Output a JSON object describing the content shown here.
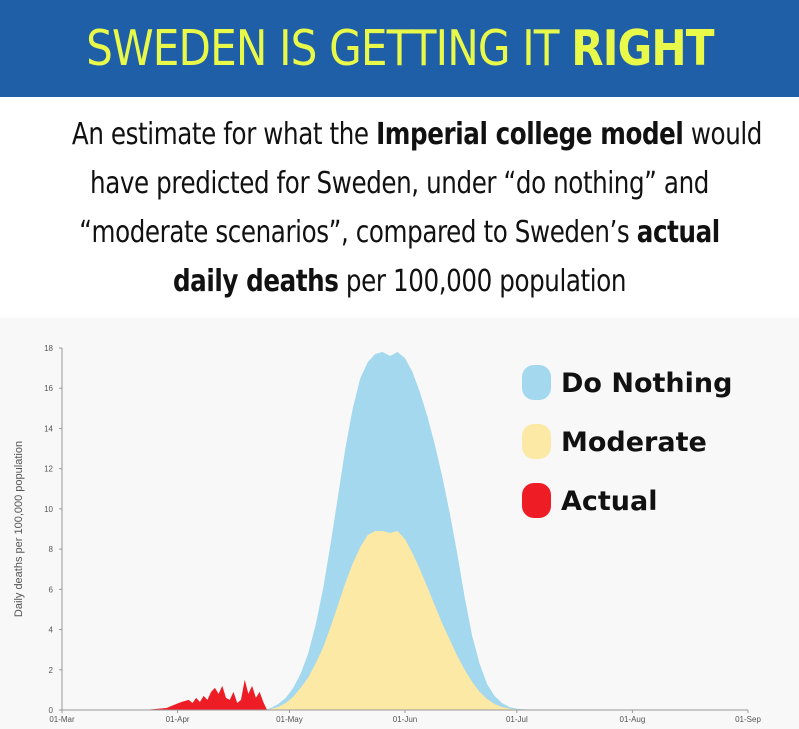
{
  "header": {
    "title_regular": "SWEDEN IS GETTING IT ",
    "title_bold": "RIGHT",
    "bg_color": "#1f5fa8",
    "text_color": "#e8f94a"
  },
  "subtitle": {
    "line1_a": "An estimate for what the ",
    "line1_b": "Imperial college model",
    "line1_c": " would",
    "line2": "have predicted for Sweden, under “do nothing” and",
    "line3_a": "“moderate scenarios”, compared to Sweden’s ",
    "line3_b": "actual",
    "line4_a": "daily deaths",
    "line4_b": " per 100,000 population"
  },
  "chart_data": {
    "type": "area",
    "ylabel": "Daily deaths per 100,000 population",
    "xlabel": "",
    "ylim": [
      0,
      18
    ],
    "yticks": [
      "0",
      "2",
      "4",
      "6",
      "8",
      "10",
      "12",
      "14",
      "16",
      "18"
    ],
    "xlim": [
      0,
      184
    ],
    "xticks": [
      {
        "label": "01-Mar",
        "day": 0
      },
      {
        "label": "01-Apr",
        "day": 31
      },
      {
        "label": "01-May",
        "day": 61
      },
      {
        "label": "01-Jun",
        "day": 92
      },
      {
        "label": "01-Jul",
        "day": 122
      },
      {
        "label": "01-Aug",
        "day": 153
      },
      {
        "label": "01-Sep",
        "day": 184
      }
    ],
    "series": [
      {
        "name": "Do Nothing",
        "color": "#a3d8ee",
        "points": [
          [
            54,
            0
          ],
          [
            56,
            0.1
          ],
          [
            58,
            0.3
          ],
          [
            60,
            0.6
          ],
          [
            62,
            1.1
          ],
          [
            64,
            1.8
          ],
          [
            66,
            2.8
          ],
          [
            68,
            4.2
          ],
          [
            70,
            6.0
          ],
          [
            72,
            8.2
          ],
          [
            74,
            10.6
          ],
          [
            76,
            13.0
          ],
          [
            78,
            15.0
          ],
          [
            80,
            16.5
          ],
          [
            82,
            17.3
          ],
          [
            84,
            17.7
          ],
          [
            86,
            17.8
          ],
          [
            88,
            17.6
          ],
          [
            90,
            17.8
          ],
          [
            92,
            17.5
          ],
          [
            94,
            16.8
          ],
          [
            96,
            15.8
          ],
          [
            98,
            14.6
          ],
          [
            100,
            13.2
          ],
          [
            102,
            11.6
          ],
          [
            104,
            9.8
          ],
          [
            106,
            7.8
          ],
          [
            108,
            5.6
          ],
          [
            110,
            3.7
          ],
          [
            112,
            2.3
          ],
          [
            114,
            1.3
          ],
          [
            116,
            0.7
          ],
          [
            118,
            0.35
          ],
          [
            120,
            0.15
          ],
          [
            122,
            0.06
          ],
          [
            126,
            0
          ]
        ]
      },
      {
        "name": "Moderate",
        "color": "#fde9a6",
        "points": [
          [
            54,
            0
          ],
          [
            56,
            0.05
          ],
          [
            58,
            0.15
          ],
          [
            60,
            0.35
          ],
          [
            62,
            0.65
          ],
          [
            64,
            1.1
          ],
          [
            66,
            1.6
          ],
          [
            68,
            2.3
          ],
          [
            70,
            3.1
          ],
          [
            72,
            4.1
          ],
          [
            74,
            5.2
          ],
          [
            76,
            6.3
          ],
          [
            78,
            7.3
          ],
          [
            80,
            8.1
          ],
          [
            82,
            8.7
          ],
          [
            84,
            8.9
          ],
          [
            86,
            8.9
          ],
          [
            88,
            8.8
          ],
          [
            90,
            8.9
          ],
          [
            92,
            8.5
          ],
          [
            94,
            7.8
          ],
          [
            96,
            7.0
          ],
          [
            98,
            6.1
          ],
          [
            100,
            5.2
          ],
          [
            102,
            4.3
          ],
          [
            104,
            3.5
          ],
          [
            106,
            2.7
          ],
          [
            108,
            2.0
          ],
          [
            110,
            1.4
          ],
          [
            112,
            0.9
          ],
          [
            114,
            0.55
          ],
          [
            116,
            0.3
          ],
          [
            118,
            0.15
          ],
          [
            120,
            0.07
          ],
          [
            122,
            0.03
          ],
          [
            124,
            0
          ]
        ]
      },
      {
        "name": "Actual",
        "color": "#ee1c25",
        "points": [
          [
            22,
            0
          ],
          [
            25,
            0.05
          ],
          [
            28,
            0.1
          ],
          [
            30,
            0.25
          ],
          [
            32,
            0.4
          ],
          [
            34,
            0.5
          ],
          [
            35,
            0.35
          ],
          [
            36,
            0.6
          ],
          [
            37,
            0.4
          ],
          [
            38,
            0.7
          ],
          [
            39,
            0.5
          ],
          [
            40,
            0.9
          ],
          [
            41,
            1.1
          ],
          [
            42,
            0.8
          ],
          [
            43,
            1.2
          ],
          [
            44,
            0.6
          ],
          [
            45,
            0.5
          ],
          [
            46,
            0.9
          ],
          [
            47,
            0.35
          ],
          [
            48,
            0.5
          ],
          [
            49,
            1.5
          ],
          [
            50,
            0.8
          ],
          [
            51,
            1.2
          ],
          [
            52,
            0.6
          ],
          [
            53,
            0.9
          ],
          [
            54,
            0.4
          ],
          [
            55,
            0
          ]
        ]
      }
    ],
    "legend": {
      "position": "top-right"
    }
  }
}
